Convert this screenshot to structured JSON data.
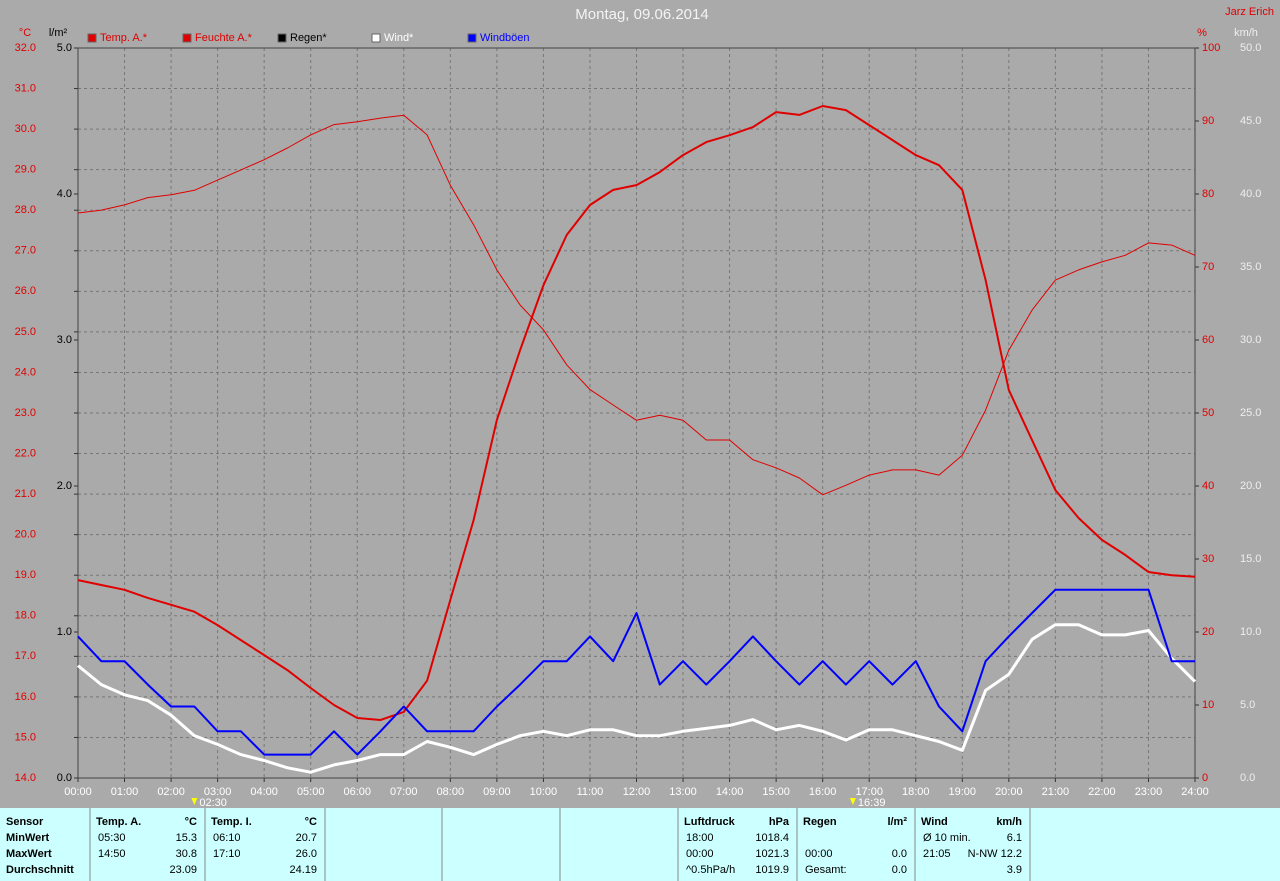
{
  "chart_data": {
    "type": "line",
    "title": "Montag, 09.06.2014",
    "author": "Jarz Erich",
    "grid": true,
    "x": [
      0,
      0.5,
      1,
      1.5,
      2,
      2.5,
      3,
      3.5,
      4,
      4.5,
      5,
      5.5,
      6,
      6.5,
      7,
      7.5,
      8,
      8.5,
      9,
      9.5,
      10,
      10.5,
      11,
      11.5,
      12,
      12.5,
      13,
      13.5,
      14,
      14.5,
      15,
      15.5,
      16,
      16.5,
      17,
      17.5,
      18,
      18.5,
      19,
      19.5,
      20,
      20.5,
      21,
      21.5,
      22,
      22.5,
      23,
      23.5,
      24
    ],
    "xlim": [
      0,
      24
    ],
    "xticks": [
      {
        "value": 0,
        "label": "00:00"
      },
      {
        "value": 1,
        "label": "01:00"
      },
      {
        "value": 2,
        "label": "02:00"
      },
      {
        "value": 3,
        "label": "03:00"
      },
      {
        "value": 4,
        "label": "04:00"
      },
      {
        "value": 5,
        "label": "05:00"
      },
      {
        "value": 6,
        "label": "06:00"
      },
      {
        "value": 7,
        "label": "07:00"
      },
      {
        "value": 8,
        "label": "08:00"
      },
      {
        "value": 9,
        "label": "09:00"
      },
      {
        "value": 10,
        "label": "10:00"
      },
      {
        "value": 11,
        "label": "11:00"
      },
      {
        "value": 12,
        "label": "12:00"
      },
      {
        "value": 13,
        "label": "13:00"
      },
      {
        "value": 14,
        "label": "14:00"
      },
      {
        "value": 15,
        "label": "15:00"
      },
      {
        "value": 16,
        "label": "16:00"
      },
      {
        "value": 17,
        "label": "17:00"
      },
      {
        "value": 18,
        "label": "18:00"
      },
      {
        "value": 19,
        "label": "19:00"
      },
      {
        "value": 20,
        "label": "20:00"
      },
      {
        "value": 21,
        "label": "21:00"
      },
      {
        "value": 22,
        "label": "22:00"
      },
      {
        "value": 23,
        "label": "23:00"
      },
      {
        "value": 24,
        "label": "24:00"
      }
    ],
    "axes": [
      {
        "unit": "°C",
        "color": "#e00000",
        "lim": [
          14,
          32
        ],
        "ticks": [
          {
            "value": 14,
            "label": "14.0"
          },
          {
            "value": 15,
            "label": "15.0"
          },
          {
            "value": 16,
            "label": "16.0"
          },
          {
            "value": 17,
            "label": "17.0"
          },
          {
            "value": 18,
            "label": "18.0"
          },
          {
            "value": 19,
            "label": "19.0"
          },
          {
            "value": 20,
            "label": "20.0"
          },
          {
            "value": 21,
            "label": "21.0"
          },
          {
            "value": 22,
            "label": "22.0"
          },
          {
            "value": 23,
            "label": "23.0"
          },
          {
            "value": 24,
            "label": "24.0"
          },
          {
            "value": 25,
            "label": "25.0"
          },
          {
            "value": 26,
            "label": "26.0"
          },
          {
            "value": 27,
            "label": "27.0"
          },
          {
            "value": 28,
            "label": "28.0"
          },
          {
            "value": 29,
            "label": "29.0"
          },
          {
            "value": 30,
            "label": "30.0"
          },
          {
            "value": 31,
            "label": "31.0"
          },
          {
            "value": 32,
            "label": "32.0"
          }
        ]
      },
      {
        "unit": "l/m²",
        "color": "#000000",
        "lim": [
          0,
          5
        ],
        "ticks": [
          {
            "value": 0,
            "label": "0.0"
          },
          {
            "value": 1,
            "label": "1.0"
          },
          {
            "value": 2,
            "label": "2.0"
          },
          {
            "value": 3,
            "label": "3.0"
          },
          {
            "value": 4,
            "label": "4.0"
          },
          {
            "value": 5,
            "label": "5.0"
          }
        ]
      },
      {
        "unit": "%",
        "color": "#e00000",
        "lim": [
          0,
          100
        ],
        "ticks": [
          0,
          10,
          20,
          30,
          40,
          50,
          60,
          70,
          80,
          90,
          100
        ]
      },
      {
        "unit": "km/h",
        "color": "#eeeeee",
        "lim": [
          0,
          50
        ],
        "ticks": [
          {
            "value": 0,
            "label": "0.0"
          },
          {
            "value": 5,
            "label": "5.0"
          },
          {
            "value": 10,
            "label": "10.0"
          },
          {
            "value": 15,
            "label": "15.0"
          },
          {
            "value": 20,
            "label": "20.0"
          },
          {
            "value": 25,
            "label": "25.0"
          },
          {
            "value": 30,
            "label": "30.0"
          },
          {
            "value": 35,
            "label": "35.0"
          },
          {
            "value": 40,
            "label": "40.0"
          },
          {
            "value": 45,
            "label": "45.0"
          },
          {
            "value": 50,
            "label": "50.0"
          }
        ]
      }
    ],
    "series": [
      {
        "name": "Temp. A.*",
        "color": "#e00000",
        "axis": 0,
        "width": 2,
        "values": [
          18.88,
          18.76,
          18.64,
          18.44,
          18.27,
          18.1,
          17.77,
          17.4,
          17.03,
          16.66,
          16.22,
          15.8,
          15.48,
          15.43,
          15.63,
          16.4,
          18.39,
          20.36,
          22.83,
          24.55,
          26.15,
          27.39,
          28.13,
          28.5,
          28.62,
          28.94,
          29.36,
          29.68,
          29.85,
          30.05,
          30.42,
          30.35,
          30.57,
          30.47,
          30.1,
          29.73,
          29.36,
          29.11,
          28.5,
          26.28,
          23.57,
          22.33,
          21.1,
          20.41,
          19.87,
          19.5,
          19.08,
          19.0,
          18.96
        ]
      },
      {
        "name": "Feuchte A.*",
        "color": "#e00000",
        "axis": 2,
        "width": 1,
        "values": [
          77.4,
          77.8,
          78.5,
          79.5,
          79.9,
          80.5,
          81.9,
          83.3,
          84.7,
          86.3,
          88.1,
          89.5,
          89.9,
          90.4,
          90.8,
          88.1,
          81.2,
          75.8,
          69.6,
          64.8,
          61.4,
          56.6,
          53.2,
          51.1,
          49.0,
          49.7,
          49.0,
          46.3,
          46.3,
          43.6,
          42.5,
          41.1,
          38.8,
          40.1,
          41.5,
          42.2,
          42.2,
          41.5,
          44.2,
          50.4,
          58.6,
          64.1,
          68.2,
          69.6,
          70.7,
          71.6,
          73.3,
          73.0,
          71.6
        ]
      },
      {
        "name": "Regen*",
        "color": "#000000",
        "axis": 1
      },
      {
        "name": "Wind*",
        "color": "#ffffff",
        "axis": 3,
        "width": 3,
        "values": [
          7.7,
          6.4,
          5.7,
          5.3,
          4.3,
          2.9,
          2.3,
          1.6,
          1.2,
          0.7,
          0.4,
          0.9,
          1.2,
          1.6,
          1.6,
          2.5,
          2.1,
          1.6,
          2.3,
          2.9,
          3.2,
          2.9,
          3.3,
          3.3,
          2.9,
          2.9,
          3.2,
          3.4,
          3.6,
          4.0,
          3.3,
          3.6,
          3.2,
          2.6,
          3.3,
          3.3,
          2.9,
          2.5,
          1.9,
          6.0,
          7.1,
          9.5,
          10.5,
          10.5,
          9.8,
          9.8,
          10.1,
          8.2,
          6.6
        ]
      },
      {
        "name": "Windböen",
        "color": "#0000ff",
        "axis": 3,
        "width": 2,
        "values": [
          9.7,
          8.0,
          8.0,
          6.4,
          4.9,
          4.9,
          3.2,
          3.2,
          1.6,
          1.6,
          1.6,
          3.2,
          1.6,
          3.2,
          4.9,
          3.2,
          3.2,
          3.2,
          4.9,
          6.4,
          8.0,
          8.0,
          9.7,
          8.0,
          11.3,
          6.4,
          8.0,
          6.4,
          8.0,
          9.7,
          8.0,
          6.4,
          8.0,
          6.4,
          8.0,
          6.4,
          8.0,
          4.9,
          3.2,
          8.0,
          9.7,
          11.3,
          12.9,
          12.9,
          12.9,
          12.9,
          12.9,
          8.0,
          8.0
        ]
      }
    ],
    "annotations": [
      {
        "x": 2.5,
        "label": "02:30"
      },
      {
        "x": 16.65,
        "label": "16:39"
      }
    ]
  },
  "table": {
    "row_labels": [
      "Sensor",
      "MinWert",
      "MaxWert",
      "Durchschnitt"
    ],
    "columns": [
      {
        "name": "Temp. A.",
        "unit": "°C",
        "cells": [
          {
            "time": "05:30",
            "value": "15.3"
          },
          {
            "time": "14:50",
            "value": "30.8"
          },
          {
            "value": "23.09"
          }
        ]
      },
      {
        "name": "Temp. I.",
        "unit": "°C",
        "cells": [
          {
            "time": "06:10",
            "value": "20.7"
          },
          {
            "time": "17:10",
            "value": "26.0"
          },
          {
            "value": "24.19"
          }
        ]
      },
      {
        "name": "Luftdruck",
        "unit": "hPa",
        "cells": [
          {
            "time": "18:00",
            "value": "1018.4"
          },
          {
            "time": "00:00",
            "value": "1021.3"
          },
          {
            "time": "^0.5hPa/h",
            "value": "1019.9"
          }
        ]
      },
      {
        "name": "Regen",
        "unit": "l/m²",
        "cells": [
          null,
          {
            "time": "00:00",
            "value": "0.0"
          },
          {
            "time": "Gesamt:",
            "value": "0.0"
          }
        ]
      },
      {
        "name": "Wind",
        "unit": "km/h",
        "cells": [
          {
            "time": "Ø 10 min.",
            "value": "6.1"
          },
          {
            "time": "21:05",
            "value": "N-NW 12.2"
          },
          {
            "value": "3.9"
          }
        ]
      }
    ]
  }
}
